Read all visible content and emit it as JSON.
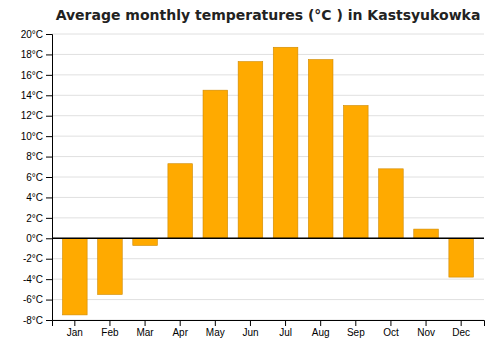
{
  "chart_data": {
    "type": "bar",
    "title": "Average monthly temperatures (°C ) in Kastsyukowka",
    "categories": [
      "Jan",
      "Feb",
      "Mar",
      "Apr",
      "May",
      "Jun",
      "Jul",
      "Aug",
      "Sep",
      "Oct",
      "Nov",
      "Dec"
    ],
    "values": [
      -7.5,
      -5.5,
      -0.7,
      7.3,
      14.5,
      17.3,
      18.7,
      17.5,
      13.0,
      6.8,
      0.9,
      -3.8
    ],
    "color": "#FFAA00",
    "ylim": [
      -8,
      20
    ],
    "yticks": [
      {
        "value": -8,
        "label": "-8°C"
      },
      {
        "value": -6,
        "label": "-6°C"
      },
      {
        "value": -4,
        "label": "-4°C"
      },
      {
        "value": -2,
        "label": "-2°C"
      },
      {
        "value": 0,
        "label": "0°C"
      },
      {
        "value": 2,
        "label": "2°C"
      },
      {
        "value": 4,
        "label": "4°C"
      },
      {
        "value": 6,
        "label": "6°C"
      },
      {
        "value": 8,
        "label": "8°C"
      },
      {
        "value": 10,
        "label": "10°C"
      },
      {
        "value": 12,
        "label": "12°C"
      },
      {
        "value": 14,
        "label": "14°C"
      },
      {
        "value": 16,
        "label": "16°C"
      },
      {
        "value": 18,
        "label": "18°C"
      },
      {
        "value": 20,
        "label": "20°C"
      }
    ],
    "grid": true
  }
}
